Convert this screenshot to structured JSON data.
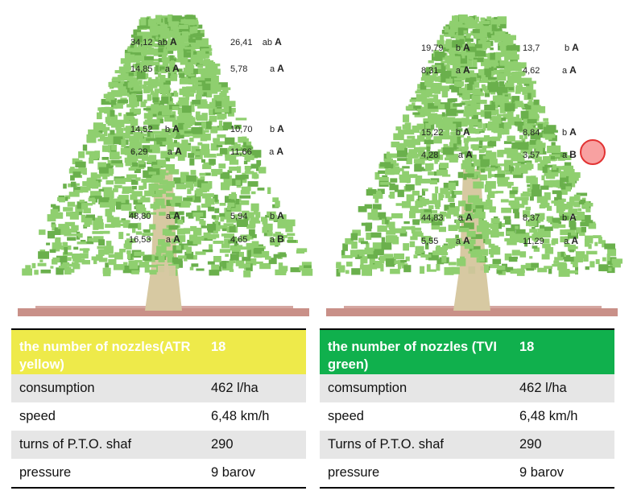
{
  "colors": {
    "foliage": "#8fcf6f",
    "foliage_dark": "#6ab04c",
    "trunk": "#d7c9a2",
    "ground": "#c99088",
    "atr_yellow": "#eeea4a",
    "tvi_green": "#10b04d",
    "row_shade": "#e6e6e6",
    "marker": "#e23333"
  },
  "left": {
    "labels": [
      {
        "value": "34,12",
        "letters": "ab",
        "group": "A"
      },
      {
        "value": "26,41",
        "letters": "ab",
        "group": "A"
      },
      {
        "value": "14,85",
        "letters": "a",
        "group": "A"
      },
      {
        "value": "5,78",
        "letters": "a",
        "group": "A"
      },
      {
        "value": "14,52",
        "letters": "b",
        "group": "A"
      },
      {
        "value": "10,70",
        "letters": "b",
        "group": "A"
      },
      {
        "value": "6,29",
        "letters": "a",
        "group": "A"
      },
      {
        "value": "11,66",
        "letters": "a",
        "group": "A"
      },
      {
        "value": "48,80",
        "letters": "a",
        "group": "A"
      },
      {
        "value": "5,94",
        "letters": "b",
        "group": "A"
      },
      {
        "value": "16,53",
        "letters": "a",
        "group": "A"
      },
      {
        "value": "4,65",
        "letters": "a",
        "group": "B"
      }
    ],
    "table": {
      "header": {
        "label": "the number of nozzles(ATR yellow)",
        "value": "18"
      },
      "rows": [
        {
          "label": "consumption",
          "value": "462 l/ha"
        },
        {
          "label": "speed",
          "value": "6,48 km/h"
        },
        {
          "label": "turns of P.T.O. shaf",
          "value": "290"
        },
        {
          "label": "pressure",
          "value": "9 barov"
        }
      ]
    }
  },
  "right": {
    "labels": [
      {
        "value": "19,79",
        "letters": "b",
        "group": "A"
      },
      {
        "value": "13,7",
        "letters": "b",
        "group": "A"
      },
      {
        "value": "8,31",
        "letters": "a",
        "group": "A"
      },
      {
        "value": "4,62",
        "letters": "a",
        "group": "A"
      },
      {
        "value": "15,22",
        "letters": "b",
        "group": "A"
      },
      {
        "value": "8,84",
        "letters": "b",
        "group": "A"
      },
      {
        "value": "4,28",
        "letters": "a",
        "group": "A"
      },
      {
        "value": "3,57",
        "letters": "a",
        "group": "B"
      },
      {
        "value": "44,83",
        "letters": "a",
        "group": "A"
      },
      {
        "value": "8,37",
        "letters": "b",
        "group": "A"
      },
      {
        "value": "5,55",
        "letters": "a",
        "group": "A"
      },
      {
        "value": "11,29",
        "letters": "a",
        "group": "A"
      }
    ],
    "table": {
      "header": {
        "label": "the number of nozzles (TVI green)",
        "value": "18"
      },
      "rows": [
        {
          "label": "comsumption",
          "value": "462 l/ha"
        },
        {
          "label": "speed",
          "value": "6,48 km/h"
        },
        {
          "label": "Turns of P.T.O. shaf",
          "value": "290"
        },
        {
          "label": "pressure",
          "value": "9 barov"
        }
      ]
    }
  }
}
